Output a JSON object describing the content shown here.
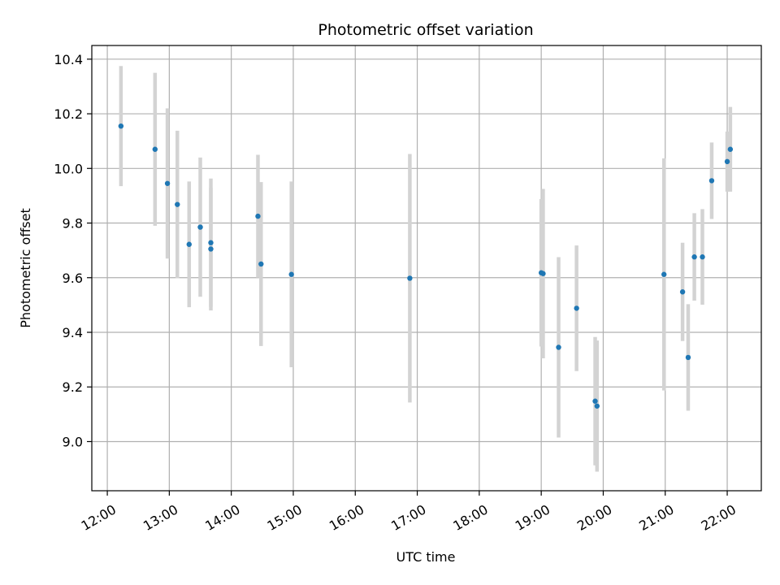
{
  "chart_data": {
    "type": "scatter",
    "title": "Photometric offset variation",
    "xlabel": "UTC time",
    "ylabel": "Photometric offset",
    "x_unit": "UTC hour of day",
    "xlim": [
      11.75,
      22.55
    ],
    "ylim": [
      8.82,
      10.45
    ],
    "x_ticks": [
      12,
      13,
      14,
      15,
      16,
      17,
      18,
      19,
      20,
      21,
      22
    ],
    "x_tick_labels": [
      "12:00",
      "13:00",
      "14:00",
      "15:00",
      "16:00",
      "17:00",
      "18:00",
      "19:00",
      "20:00",
      "21:00",
      "22:00"
    ],
    "y_ticks": [
      9.0,
      9.2,
      9.4,
      9.6,
      9.8,
      10.0,
      10.2,
      10.4
    ],
    "y_tick_labels": [
      "9.0",
      "9.2",
      "9.4",
      "9.6",
      "9.8",
      "10.0",
      "10.2",
      "10.4"
    ],
    "grid": true,
    "colors": {
      "point": "#1f77b4",
      "errorbar": "#d3d3d3",
      "grid": "#b0b0b0"
    },
    "points": [
      {
        "x": 12.22,
        "y": 10.155,
        "err": 0.22
      },
      {
        "x": 12.77,
        "y": 10.07,
        "err": 0.28
      },
      {
        "x": 12.97,
        "y": 9.945,
        "err": 0.275
      },
      {
        "x": 13.13,
        "y": 9.868,
        "err": 0.27
      },
      {
        "x": 13.32,
        "y": 9.722,
        "err": 0.23
      },
      {
        "x": 13.5,
        "y": 9.785,
        "err": 0.255
      },
      {
        "x": 13.67,
        "y": 9.728,
        "err": 0.235
      },
      {
        "x": 13.67,
        "y": 9.705,
        "err": 0.225
      },
      {
        "x": 14.43,
        "y": 9.825,
        "err": 0.225
      },
      {
        "x": 14.48,
        "y": 9.65,
        "err": 0.3
      },
      {
        "x": 14.97,
        "y": 9.612,
        "err": 0.34
      },
      {
        "x": 16.88,
        "y": 9.598,
        "err": 0.455
      },
      {
        "x": 19.0,
        "y": 9.618,
        "err": 0.27
      },
      {
        "x": 19.03,
        "y": 9.615,
        "err": 0.31
      },
      {
        "x": 19.28,
        "y": 9.345,
        "err": 0.33
      },
      {
        "x": 19.57,
        "y": 9.488,
        "err": 0.23
      },
      {
        "x": 19.87,
        "y": 9.148,
        "err": 0.235
      },
      {
        "x": 19.9,
        "y": 9.13,
        "err": 0.24
      },
      {
        "x": 20.98,
        "y": 9.612,
        "err": 0.425
      },
      {
        "x": 21.28,
        "y": 9.548,
        "err": 0.18
      },
      {
        "x": 21.37,
        "y": 9.308,
        "err": 0.195
      },
      {
        "x": 21.47,
        "y": 9.676,
        "err": 0.16
      },
      {
        "x": 21.6,
        "y": 9.676,
        "err": 0.175
      },
      {
        "x": 21.75,
        "y": 9.955,
        "err": 0.14
      },
      {
        "x": 22.0,
        "y": 10.025,
        "err": 0.11
      },
      {
        "x": 22.05,
        "y": 10.07,
        "err": 0.155
      }
    ]
  }
}
